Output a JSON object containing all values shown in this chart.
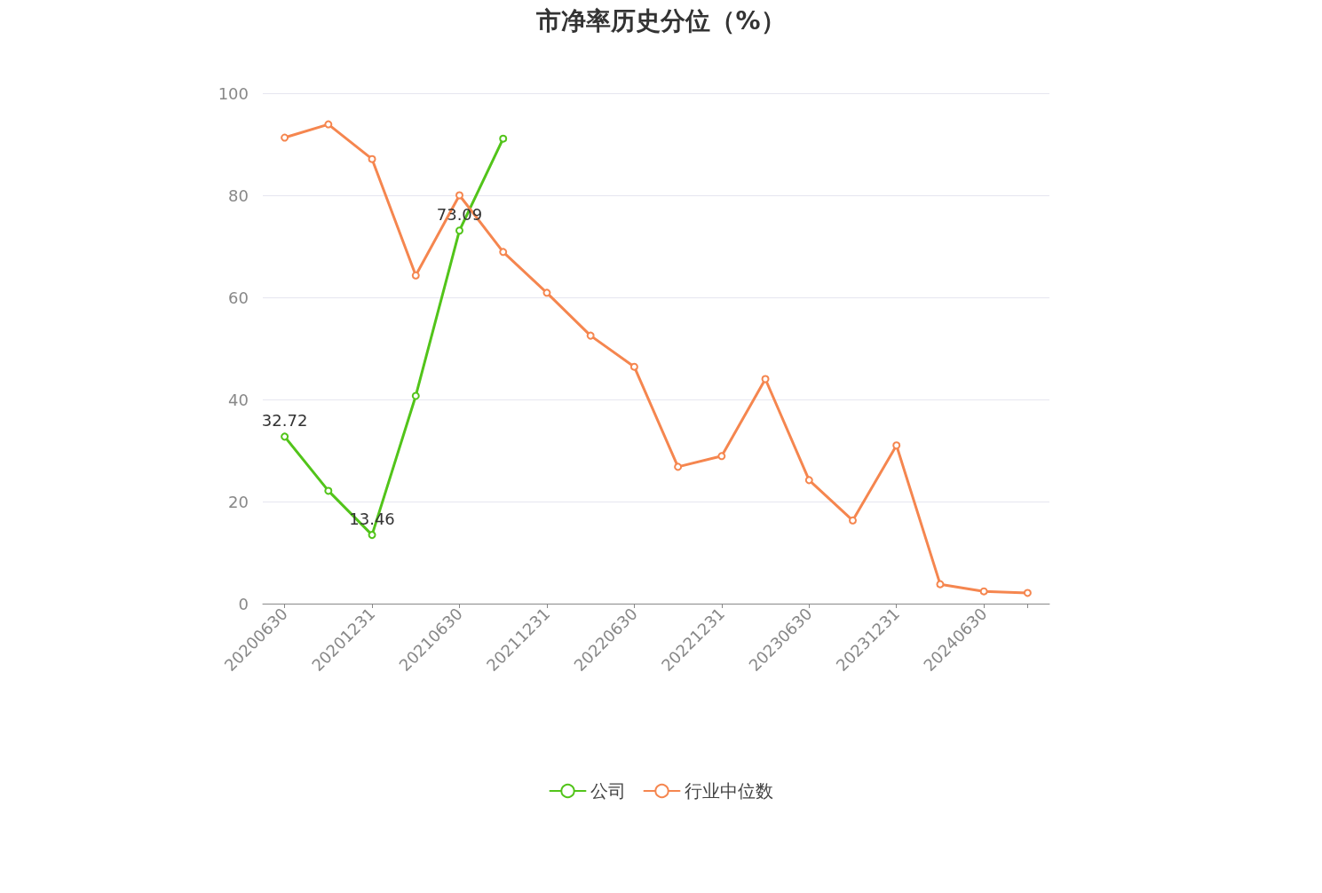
{
  "chart_data": {
    "type": "line",
    "title": "市净率历史分位（%）",
    "categories": [
      "20200630",
      null,
      "20201231",
      null,
      "20210630",
      null,
      "20211231",
      null,
      "20220630",
      null,
      "20221231",
      null,
      "20230630",
      null,
      "20231231",
      null,
      "20240630",
      null
    ],
    "series": [
      {
        "name": "公司",
        "color": "#52c41a",
        "values": [
          32.72,
          22.1,
          13.46,
          40.7,
          73.09,
          91.1,
          null,
          null,
          null,
          null,
          null,
          null,
          null,
          null,
          null,
          null,
          null,
          null
        ],
        "value_labels": [
          "32.72",
          null,
          "13.46",
          null,
          "73.09",
          null,
          null,
          null,
          null,
          null,
          null,
          null,
          null,
          null,
          null,
          null,
          null,
          null
        ]
      },
      {
        "name": "行业中位数",
        "color": "#f5864f",
        "values": [
          91.3,
          93.9,
          87.1,
          64.3,
          80,
          68.9,
          60.9,
          52.5,
          46.4,
          26.8,
          28.9,
          44.0,
          24.2,
          16.3,
          31.0,
          3.8,
          2.4,
          2.1
        ]
      }
    ],
    "ylim": [
      0,
      100
    ],
    "yticks": [
      0,
      20,
      40,
      60,
      80,
      100
    ],
    "grid": "y",
    "legend": "bottom",
    "marker": "circle",
    "line_style": "solid"
  }
}
